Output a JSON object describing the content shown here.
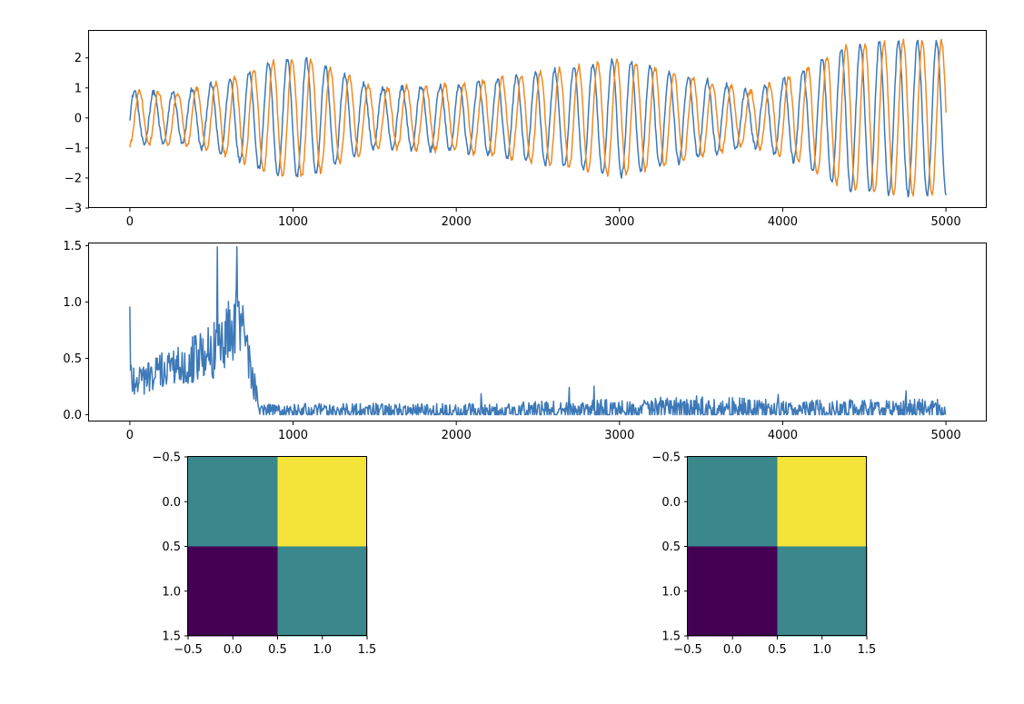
{
  "chart_data": [
    {
      "type": "line",
      "xlim": [
        -250,
        5250
      ],
      "ylim": [
        -3,
        2.9
      ],
      "xticks": [
        0,
        1000,
        2000,
        3000,
        4000,
        5000
      ],
      "yticks": [
        -3,
        -2,
        -1,
        0,
        1,
        2
      ],
      "xtick_labels": [
        "0",
        "1000",
        "2000",
        "3000",
        "4000",
        "5000"
      ],
      "ytick_labels": [
        "−3",
        "−2",
        "−1",
        "0",
        "1",
        "2"
      ],
      "grid": false,
      "series": [
        {
          "color": "#3d79b8",
          "x": [
            0,
            300,
            600,
            900,
            1100,
            1500,
            2000,
            2500,
            3000,
            3500,
            3800,
            4100,
            4400,
            4700,
            5000
          ],
          "amplitude": [
            0.9,
            0.85,
            1.25,
            1.95,
            1.95,
            1.0,
            1.1,
            1.5,
            1.95,
            1.3,
            0.9,
            1.5,
            2.45,
            2.55,
            2.55
          ],
          "period": 117,
          "phase": 0,
          "noise": 0.09
        },
        {
          "color": "#f08a24",
          "x": [
            0,
            300,
            600,
            900,
            1100,
            1500,
            2000,
            2500,
            3000,
            3500,
            3800,
            4100,
            4400,
            4700,
            5000
          ],
          "amplitude": [
            0.9,
            0.85,
            1.25,
            1.95,
            1.95,
            1.0,
            1.1,
            1.5,
            1.95,
            1.3,
            0.9,
            1.5,
            2.45,
            2.55,
            2.55
          ],
          "period": 117,
          "phase": -1.57,
          "noise": 0.09
        }
      ]
    },
    {
      "type": "line",
      "xlim": [
        -250,
        5250
      ],
      "ylim": [
        -0.06,
        1.52
      ],
      "xticks": [
        0,
        1000,
        2000,
        3000,
        4000,
        5000
      ],
      "yticks": [
        0.0,
        0.5,
        1.0,
        1.5
      ],
      "xtick_labels": [
        "0",
        "1000",
        "2000",
        "3000",
        "4000",
        "5000"
      ],
      "ytick_labels": [
        "0.0",
        "0.5",
        "1.0",
        "1.5"
      ],
      "grid": false,
      "series": [
        {
          "color": "#3d79b8",
          "x": [
            0,
            100,
            300,
            500,
            600,
            650,
            700,
            760,
            800,
            1000,
            2000,
            3000,
            3500,
            4000,
            5000
          ],
          "level": [
            0.33,
            0.33,
            0.45,
            0.55,
            0.72,
            0.85,
            0.78,
            0.25,
            0.04,
            0.03,
            0.03,
            0.04,
            0.05,
            0.04,
            0.04
          ],
          "spread": [
            0.2,
            0.15,
            0.18,
            0.25,
            0.3,
            0.35,
            0.3,
            0.18,
            0.05,
            0.07,
            0.07,
            0.1,
            0.12,
            0.09,
            0.1
          ],
          "max": 1.49,
          "first_value": 0.96
        }
      ]
    },
    {
      "type": "heatmap",
      "extent": [
        -0.5,
        1.5
      ],
      "xticks": [
        "−0.5",
        "0.0",
        "0.5",
        "1.0",
        "1.5"
      ],
      "yticks": [
        "−0.5",
        "0.0",
        "0.5",
        "1.0",
        "1.5"
      ],
      "cells": [
        [
          "#3a888b",
          "#f5e43a"
        ],
        [
          "#440154",
          "#3a888b"
        ]
      ]
    },
    {
      "type": "heatmap",
      "extent": [
        -0.5,
        1.5
      ],
      "xticks": [
        "−0.5",
        "0.0",
        "0.5",
        "1.0",
        "1.5"
      ],
      "yticks": [
        "−0.5",
        "0.0",
        "0.5",
        "1.0",
        "1.5"
      ],
      "cells": [
        [
          "#3a888b",
          "#f5e43a"
        ],
        [
          "#440154",
          "#3a888b"
        ]
      ]
    }
  ]
}
